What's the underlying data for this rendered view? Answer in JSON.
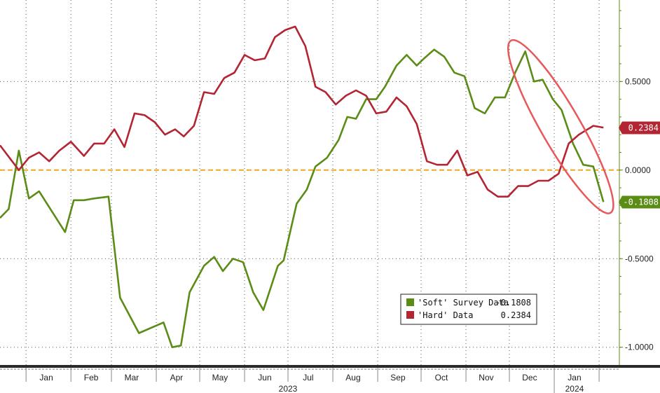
{
  "chart_data": {
    "type": "line",
    "title": "",
    "xlabel": "",
    "ylabel": "",
    "ylim": [
      -1.1,
      0.96
    ],
    "grid": true,
    "legend_position": "bottom-right",
    "x_range": [
      "2022-12-14",
      "2024-02-15"
    ],
    "month_labels": [
      {
        "label": "Jan",
        "date": "2023-01-15"
      },
      {
        "label": "Feb",
        "date": "2023-02-15"
      },
      {
        "label": "Mar",
        "date": "2023-03-15"
      },
      {
        "label": "Apr",
        "date": "2023-04-15"
      },
      {
        "label": "May",
        "date": "2023-05-15"
      },
      {
        "label": "Jun",
        "date": "2023-06-15"
      },
      {
        "label": "Jul",
        "date": "2023-07-15"
      },
      {
        "label": "Aug",
        "date": "2023-08-15"
      },
      {
        "label": "Sep",
        "date": "2023-09-15"
      },
      {
        "label": "Oct",
        "date": "2023-10-15"
      },
      {
        "label": "Nov",
        "date": "2023-11-15"
      },
      {
        "label": "Dec",
        "date": "2023-12-15"
      },
      {
        "label": "Jan",
        "date": "2024-01-15"
      }
    ],
    "year_labels": [
      {
        "label": "2023",
        "date": "2023-07-01"
      },
      {
        "label": "2024",
        "date": "2024-01-15"
      }
    ],
    "y_ticks": [
      {
        "value": 0.5,
        "label": "0.5000"
      },
      {
        "value": 0.0,
        "label": "0.0000"
      },
      {
        "value": -0.5,
        "label": "-0.5000"
      },
      {
        "value": -1.0,
        "label": "-1.0000"
      }
    ],
    "reference_line": {
      "value": 0.0,
      "color": "#f0a81c"
    },
    "series": [
      {
        "name": "'Soft' Survey Data",
        "last_value": -0.1808,
        "last_label": "-0.1808",
        "color": "#5b8c16",
        "points": [
          [
            "2022-12-14",
            -0.27
          ],
          [
            "2022-12-20",
            -0.22
          ],
          [
            "2022-12-27",
            0.11
          ],
          [
            "2023-01-03",
            -0.16
          ],
          [
            "2023-01-10",
            -0.12
          ],
          [
            "2023-01-28",
            -0.35
          ],
          [
            "2023-02-03",
            -0.17
          ],
          [
            "2023-02-10",
            -0.17
          ],
          [
            "2023-02-17",
            -0.16
          ],
          [
            "2023-02-27",
            -0.15
          ],
          [
            "2023-03-07",
            -0.72
          ],
          [
            "2023-03-20",
            -0.92
          ],
          [
            "2023-04-06",
            -0.86
          ],
          [
            "2023-04-12",
            -1.0
          ],
          [
            "2023-04-18",
            -0.99
          ],
          [
            "2023-04-24",
            -0.69
          ],
          [
            "2023-05-04",
            -0.54
          ],
          [
            "2023-05-11",
            -0.49
          ],
          [
            "2023-05-17",
            -0.57
          ],
          [
            "2023-05-24",
            -0.5
          ],
          [
            "2023-05-31",
            -0.52
          ],
          [
            "2023-06-07",
            -0.69
          ],
          [
            "2023-06-14",
            -0.79
          ],
          [
            "2023-06-24",
            -0.54
          ],
          [
            "2023-06-28",
            -0.51
          ],
          [
            "2023-07-07",
            -0.19
          ],
          [
            "2023-07-14",
            -0.11
          ],
          [
            "2023-07-20",
            0.02
          ],
          [
            "2023-07-28",
            0.07
          ],
          [
            "2023-08-05",
            0.17
          ],
          [
            "2023-08-11",
            0.3
          ],
          [
            "2023-08-17",
            0.29
          ],
          [
            "2023-08-24",
            0.4
          ],
          [
            "2023-08-31",
            0.4
          ],
          [
            "2023-09-06",
            0.47
          ],
          [
            "2023-09-14",
            0.59
          ],
          [
            "2023-09-21",
            0.65
          ],
          [
            "2023-09-28",
            0.59
          ],
          [
            "2023-10-03",
            0.63
          ],
          [
            "2023-10-10",
            0.68
          ],
          [
            "2023-10-17",
            0.64
          ],
          [
            "2023-10-24",
            0.55
          ],
          [
            "2023-10-31",
            0.53
          ],
          [
            "2023-11-07",
            0.35
          ],
          [
            "2023-11-14",
            0.32
          ],
          [
            "2023-11-21",
            0.41
          ],
          [
            "2023-11-28",
            0.41
          ],
          [
            "2023-12-05",
            0.55
          ],
          [
            "2023-12-12",
            0.67
          ],
          [
            "2023-12-18",
            0.5
          ],
          [
            "2023-12-24",
            0.51
          ],
          [
            "2023-12-31",
            0.4
          ],
          [
            "2024-01-06",
            0.34
          ],
          [
            "2024-01-14",
            0.15
          ],
          [
            "2024-01-21",
            0.03
          ],
          [
            "2024-01-28",
            0.02
          ],
          [
            "2024-02-04",
            -0.18
          ]
        ]
      },
      {
        "name": "'Hard' Data",
        "last_value": 0.2384,
        "last_label": "0.2384",
        "color": "#b32532",
        "points": [
          [
            "2022-12-14",
            0.14
          ],
          [
            "2022-12-27",
            0.0
          ],
          [
            "2023-01-03",
            0.07
          ],
          [
            "2023-01-10",
            0.1
          ],
          [
            "2023-01-17",
            0.05
          ],
          [
            "2023-01-24",
            0.11
          ],
          [
            "2023-02-01",
            0.16
          ],
          [
            "2023-02-10",
            0.08
          ],
          [
            "2023-02-17",
            0.15
          ],
          [
            "2023-02-24",
            0.15
          ],
          [
            "2023-03-03",
            0.23
          ],
          [
            "2023-03-10",
            0.13
          ],
          [
            "2023-03-17",
            0.32
          ],
          [
            "2023-03-24",
            0.31
          ],
          [
            "2023-03-31",
            0.27
          ],
          [
            "2023-04-07",
            0.2
          ],
          [
            "2023-04-14",
            0.23
          ],
          [
            "2023-04-20",
            0.19
          ],
          [
            "2023-04-27",
            0.25
          ],
          [
            "2023-05-04",
            0.44
          ],
          [
            "2023-05-11",
            0.43
          ],
          [
            "2023-05-18",
            0.52
          ],
          [
            "2023-05-25",
            0.55
          ],
          [
            "2023-06-01",
            0.65
          ],
          [
            "2023-06-08",
            0.62
          ],
          [
            "2023-06-15",
            0.63
          ],
          [
            "2023-06-22",
            0.75
          ],
          [
            "2023-06-29",
            0.79
          ],
          [
            "2023-07-06",
            0.81
          ],
          [
            "2023-07-13",
            0.7
          ],
          [
            "2023-07-20",
            0.47
          ],
          [
            "2023-07-27",
            0.44
          ],
          [
            "2023-08-03",
            0.37
          ],
          [
            "2023-08-10",
            0.42
          ],
          [
            "2023-08-17",
            0.45
          ],
          [
            "2023-08-24",
            0.42
          ],
          [
            "2023-08-31",
            0.32
          ],
          [
            "2023-09-07",
            0.33
          ],
          [
            "2023-09-14",
            0.41
          ],
          [
            "2023-09-21",
            0.36
          ],
          [
            "2023-09-28",
            0.26
          ],
          [
            "2023-10-05",
            0.05
          ],
          [
            "2023-10-12",
            0.03
          ],
          [
            "2023-10-19",
            0.03
          ],
          [
            "2023-10-26",
            0.11
          ],
          [
            "2023-11-02",
            -0.03
          ],
          [
            "2023-11-09",
            -0.01
          ],
          [
            "2023-11-16",
            -0.11
          ],
          [
            "2023-11-23",
            -0.15
          ],
          [
            "2023-11-30",
            -0.15
          ],
          [
            "2023-12-07",
            -0.09
          ],
          [
            "2023-12-14",
            -0.09
          ],
          [
            "2023-12-21",
            -0.06
          ],
          [
            "2023-12-28",
            -0.06
          ],
          [
            "2024-01-04",
            -0.02
          ],
          [
            "2024-01-11",
            0.15
          ],
          [
            "2024-01-18",
            0.2
          ],
          [
            "2024-01-28",
            0.25
          ],
          [
            "2024-02-04",
            0.24
          ]
        ]
      }
    ],
    "legend": [
      {
        "label": "'Soft' Survey Data",
        "value": "-0.1808",
        "color": "#5b8c16"
      },
      {
        "label": "'Hard' Data",
        "value": "0.2384",
        "color": "#b32532"
      }
    ],
    "annotation": {
      "shape": "ellipse",
      "color": "#e8585a",
      "from": "2023-12-05",
      "to": "2024-02-06"
    }
  }
}
